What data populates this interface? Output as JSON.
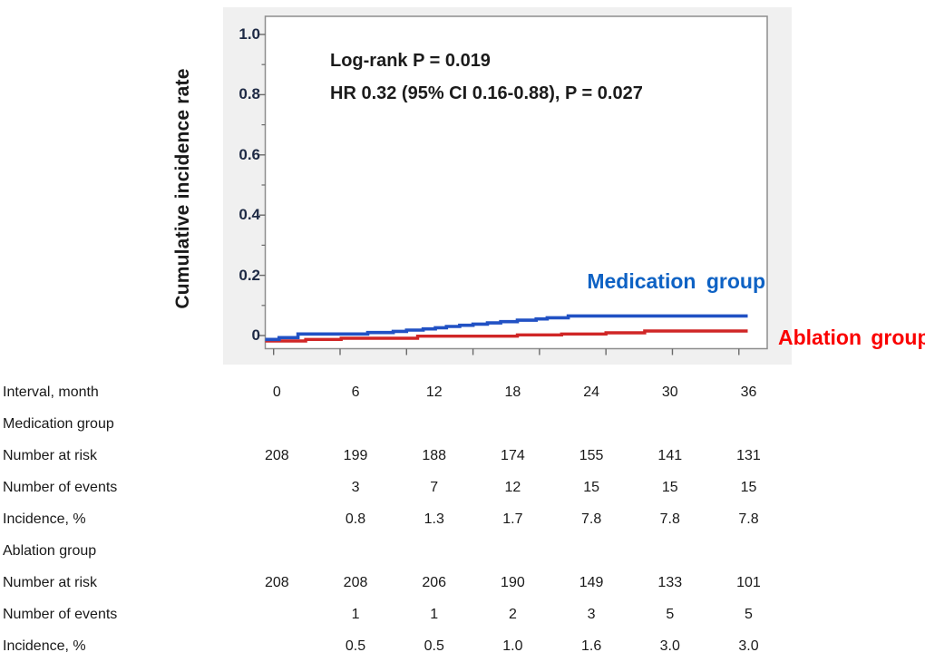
{
  "figure": {
    "title": "",
    "background_color": "#f0f0f0",
    "plot_background_color": "#ffffff",
    "frame_color": "#8d8d8d",
    "tick_color": "#6a6a6a"
  },
  "chart_data": {
    "type": "line",
    "subtype": "kaplan-meier-step",
    "title": "",
    "xlabel": "Interval, month",
    "ylabel": "Cumulative incidence rate",
    "xlim": [
      -0.9,
      44.6
    ],
    "ylim": [
      -0.044,
      1.06
    ],
    "xticks": [
      0,
      6,
      12,
      18,
      24,
      30,
      36,
      42
    ],
    "yticks": [
      0,
      0.2,
      0.4,
      0.6,
      0.8,
      1.0
    ],
    "ytick_labels": [
      "0",
      "0.2",
      "0.4",
      "0.6",
      "0.8",
      "1.0"
    ],
    "yticks_minor": [
      0.1,
      0.3,
      0.5,
      0.7,
      0.9
    ],
    "grid": false,
    "annotations": [
      "Log-rank P = 0.019",
      "HR 0.32 (95% CI 0.16-0.88), P = 0.027"
    ],
    "legend": [
      {
        "label": "Medication group",
        "color": "#0e62c4",
        "position": "inside-right"
      },
      {
        "label": "Ablation group",
        "color": "#fa0000",
        "position": "outside-right"
      }
    ],
    "series": [
      {
        "name": "Ablation group",
        "color": "#d02626",
        "line_width": 3.4,
        "points": [
          [
            -0.75,
            -0.018
          ],
          [
            2.9,
            -0.013
          ],
          [
            6.1,
            -0.009
          ],
          [
            13,
            -0.002
          ],
          [
            22,
            0.002
          ],
          [
            26,
            0.005
          ],
          [
            30,
            0.009
          ],
          [
            33.5,
            0.015
          ],
          [
            42.8,
            0.015
          ]
        ]
      },
      {
        "name": "Medication group",
        "color": "#2151c4",
        "line_width": 3.6,
        "points": [
          [
            -0.75,
            -0.013
          ],
          [
            0.5,
            -0.007
          ],
          [
            2.2,
            0.005
          ],
          [
            8.5,
            0.01
          ],
          [
            10.8,
            0.014
          ],
          [
            12,
            0.018
          ],
          [
            13.5,
            0.022
          ],
          [
            14.6,
            0.026
          ],
          [
            15.6,
            0.03
          ],
          [
            16.8,
            0.034
          ],
          [
            18,
            0.038
          ],
          [
            19.3,
            0.042
          ],
          [
            20.5,
            0.046
          ],
          [
            22,
            0.051
          ],
          [
            23.7,
            0.055
          ],
          [
            24.7,
            0.059
          ],
          [
            26.6,
            0.065
          ],
          [
            42.8,
            0.065
          ]
        ]
      }
    ]
  },
  "table": {
    "rows": [
      {
        "label": "Interval, month",
        "values": [
          "0",
          "6",
          "12",
          "18",
          "24",
          "30",
          "36"
        ]
      },
      {
        "label": "Medication group",
        "values": [
          "",
          "",
          "",
          "",
          "",
          "",
          ""
        ]
      },
      {
        "label": "Number at risk",
        "values": [
          "208",
          "199",
          "188",
          "174",
          "155",
          "141",
          "131"
        ]
      },
      {
        "label": "Number of events",
        "values": [
          "",
          "3",
          "7",
          "12",
          "15",
          "15",
          "15"
        ]
      },
      {
        "label": "Incidence, %",
        "values": [
          "",
          "0.8",
          "1.3",
          "1.7",
          "7.8",
          "7.8",
          "7.8"
        ]
      },
      {
        "label": "Ablation group",
        "values": [
          "",
          "",
          "",
          "",
          "",
          "",
          ""
        ]
      },
      {
        "label": "Number at risk",
        "values": [
          "208",
          "208",
          "206",
          "190",
          "149",
          "133",
          "101"
        ]
      },
      {
        "label": "Number of events",
        "values": [
          "",
          "1",
          "1",
          "2",
          "3",
          "5",
          "5"
        ]
      },
      {
        "label": "Incidence, %",
        "values": [
          "",
          "0.5",
          "0.5",
          "1.0",
          "1.6",
          "3.0",
          "3.0"
        ]
      }
    ]
  }
}
